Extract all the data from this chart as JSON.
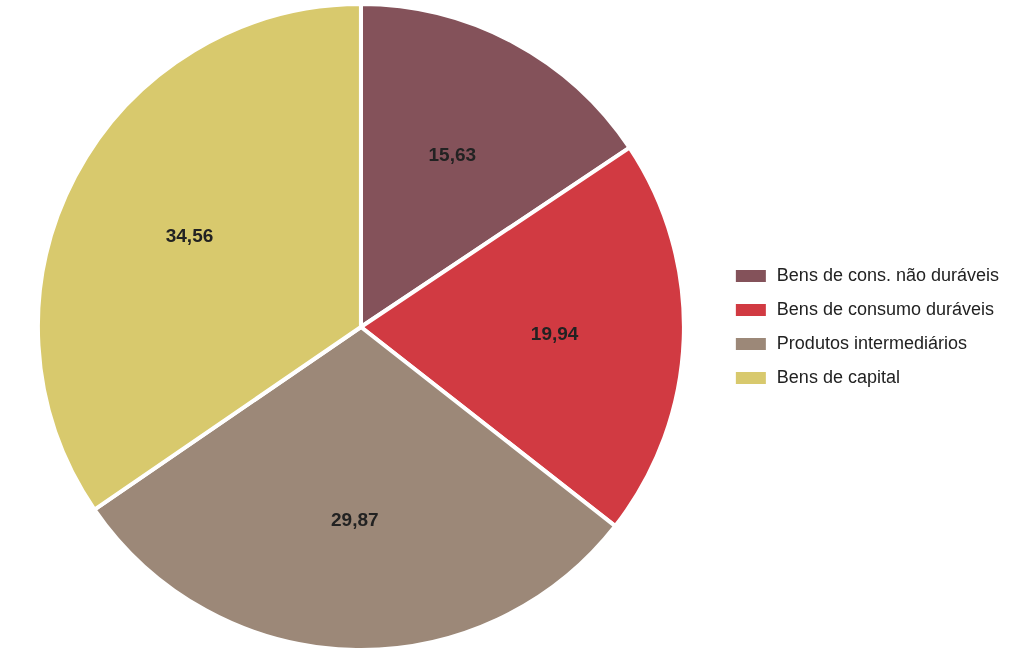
{
  "chart_data": {
    "type": "pie",
    "categories": [
      "Bens de cons. não duráveis",
      "Bens de consumo duráveis",
      "Produtos intermediários",
      "Bens de capital"
    ],
    "values": [
      15.63,
      19.94,
      29.87,
      34.56
    ],
    "colors": [
      "#84525a",
      "#d13a42",
      "#9c8878",
      "#d8c96d"
    ],
    "value_labels": [
      "15,63",
      "19,94",
      "29,87",
      "34,56"
    ],
    "legend": "right"
  }
}
